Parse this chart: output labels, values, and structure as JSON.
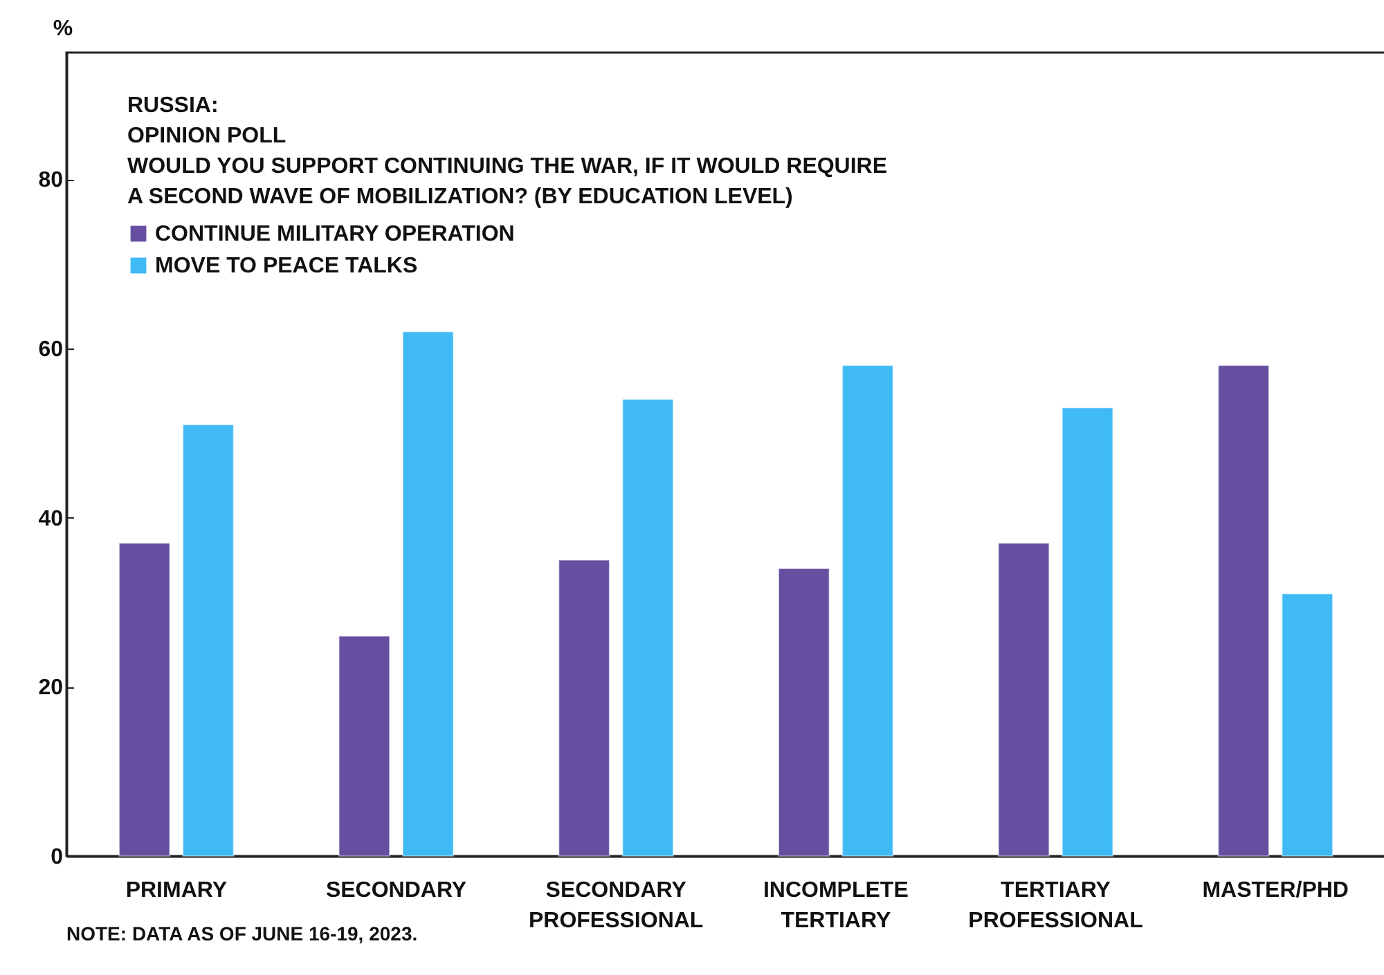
{
  "chart_data": {
    "type": "bar",
    "title": "RUSSIA:\nOPINION POLL",
    "subtitle": "WOULD YOU SUPPORT CONTINUING THE WAR, IF IT WOULD REQUIRE\nA SECOND WAVE OF MOBILIZATION? (BY EDUCATION LEVEL)",
    "ylabel": "%",
    "annotations": [
      "NOTE: DATA AS OF JUNE 16-19, 2023."
    ],
    "categories": [
      "PRIMARY",
      "SECONDARY",
      "SECONDARY PROFESSIONAL",
      "INCOMPLETE TERTIARY",
      "TERTIARY PROFESSIONAL",
      "MASTER/PHD"
    ],
    "series": [
      {
        "name": "CONTINUE MILITARY OPERATION",
        "color": "#664ea0",
        "values": [
          37,
          26,
          35,
          34,
          37,
          58
        ]
      },
      {
        "name": "MOVE TO PEACE TALKS",
        "color": "#3fbaf5",
        "values": [
          51,
          62,
          54,
          58,
          53,
          31
        ]
      }
    ],
    "ylim": [
      0,
      95
    ],
    "yticks": [
      0,
      20,
      40,
      60,
      80
    ],
    "legend": "top left"
  }
}
